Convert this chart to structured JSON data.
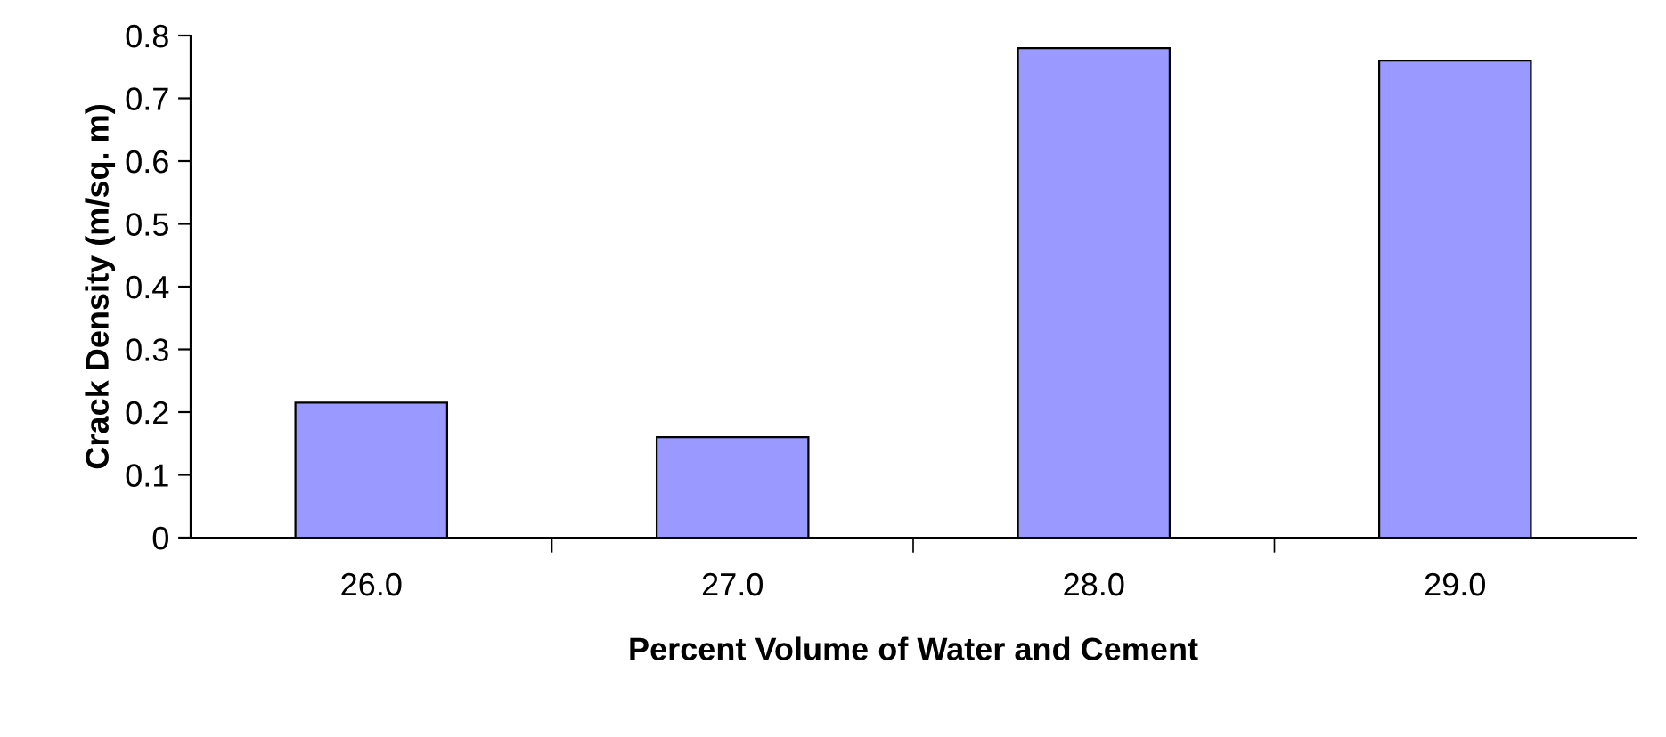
{
  "chart_data": {
    "type": "bar",
    "xlabel": "Percent Volume of Water and Cement",
    "ylabel": "Crack Density (m/sq. m)",
    "categories": [
      "26.0",
      "27.0",
      "28.0",
      "29.0"
    ],
    "values": [
      0.215,
      0.16,
      0.78,
      0.76
    ],
    "color": "#9999ff",
    "ylim": [
      0,
      0.8
    ],
    "yticks": [
      0,
      {
        "value": 0.1,
        "label": "0.1"
      },
      {
        "value": 0.2,
        "label": "0.2"
      },
      {
        "value": 0.3,
        "label": "0.3"
      },
      {
        "value": 0.4,
        "label": "0.4"
      },
      {
        "value": 0.5,
        "label": "0.5"
      },
      {
        "value": 0.6,
        "label": "0.6"
      },
      {
        "value": 0.7,
        "label": "0.7"
      },
      {
        "value": 0.8,
        "label": "0.8"
      }
    ],
    "grid": false
  }
}
